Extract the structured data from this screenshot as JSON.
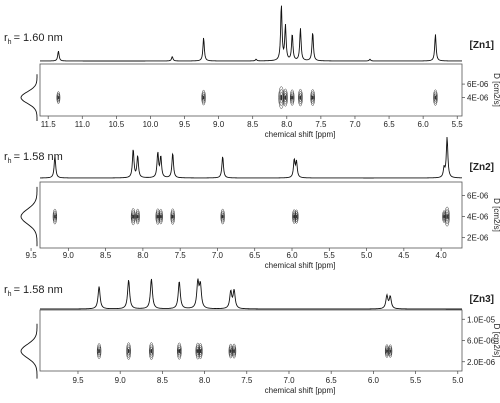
{
  "chart_data": [
    {
      "type": "dosy",
      "compound": "[Zn1]",
      "rh_symbol": "r",
      "rh_sub": "h",
      "rh_value": "= 1.60 nm",
      "xlabel": "chemical shift [ppm]",
      "ylabel": "D [cm2/s]",
      "xlim": [
        11.62,
        5.43
      ],
      "x_ticks": [
        11.5,
        11.0,
        10.5,
        10.0,
        9.5,
        9.0,
        8.5,
        8.0,
        7.5,
        7.0,
        6.5,
        6.0,
        5.5
      ],
      "x_tick_labels": [
        "11.5",
        "11.0",
        "10.5",
        "10.0",
        "9.5",
        "9.0",
        "8.5",
        "8.0",
        "7.5",
        "7.0",
        "6.5",
        "6.0",
        "5.5"
      ],
      "y_ticks": [
        6e-06,
        4e-06
      ],
      "y_tick_labels": [
        "6E-06",
        "4E-06"
      ],
      "ylim": [
        2.6e-06,
        7.2e-06
      ],
      "diffusion_coefficient": 4e-06,
      "peaks": [
        {
          "ppm": 11.35,
          "height": 0.18
        },
        {
          "ppm": 9.68,
          "height": 0.08
        },
        {
          "ppm": 9.22,
          "height": 0.42
        },
        {
          "ppm": 8.45,
          "height": 0.03
        },
        {
          "ppm": 8.08,
          "height": 1.0
        },
        {
          "ppm": 8.02,
          "height": 0.62
        },
        {
          "ppm": 7.92,
          "height": 0.48
        },
        {
          "ppm": 7.8,
          "height": 0.58
        },
        {
          "ppm": 7.62,
          "height": 0.52
        },
        {
          "ppm": 6.78,
          "height": 0.03
        },
        {
          "ppm": 5.82,
          "height": 0.48
        }
      ]
    },
    {
      "type": "dosy",
      "compound": "[Zn2]",
      "rh_symbol": "r",
      "rh_sub": "h",
      "rh_value": "= 1.58 nm",
      "xlabel": "chemical shift [ppm]",
      "ylabel": "D [cm2/s]",
      "xlim": [
        9.38,
        3.72
      ],
      "x_ticks": [
        9.5,
        9.0,
        8.5,
        8.0,
        7.5,
        7.0,
        6.5,
        6.0,
        5.5,
        5.0,
        4.5,
        4.0
      ],
      "x_tick_labels": [
        "9.5",
        "9.0",
        "8.5",
        "8.0",
        "7.5",
        "7.0",
        "6.5",
        "6.0",
        "5.5",
        "5.0",
        "4.5",
        "4.0"
      ],
      "y_ticks": [
        6e-06,
        4e-06,
        2e-06
      ],
      "y_tick_labels": [
        "6E-06",
        "4E-06",
        "2E-06"
      ],
      "ylim": [
        1.4e-06,
        6.8e-06
      ],
      "diffusion_coefficient": 4e-06,
      "peaks": [
        {
          "ppm": 9.18,
          "height": 0.42
        },
        {
          "ppm": 8.13,
          "height": 0.55
        },
        {
          "ppm": 8.07,
          "height": 0.42
        },
        {
          "ppm": 7.8,
          "height": 0.48
        },
        {
          "ppm": 7.76,
          "height": 0.4
        },
        {
          "ppm": 7.6,
          "height": 0.48
        },
        {
          "ppm": 6.93,
          "height": 0.42
        },
        {
          "ppm": 5.97,
          "height": 0.34
        },
        {
          "ppm": 5.94,
          "height": 0.3
        },
        {
          "ppm": 3.96,
          "height": 0.18
        },
        {
          "ppm": 3.92,
          "height": 0.78
        }
      ]
    },
    {
      "type": "dosy",
      "compound": "[Zn3]",
      "rh_symbol": "r",
      "rh_sub": "h",
      "rh_value": "= 1.58 nm",
      "xlabel": "chemical shift [ppm]",
      "ylabel": "D [cm2/s]",
      "xlim": [
        9.95,
        4.95
      ],
      "x_ticks": [
        9.5,
        9.0,
        8.5,
        8.0,
        7.5,
        7.0,
        6.5,
        6.0,
        5.5,
        5.0
      ],
      "x_tick_labels": [
        "9.5",
        "9.0",
        "8.5",
        "8.0",
        "7.5",
        "7.0",
        "6.5",
        "6.0",
        "5.5",
        "5.0"
      ],
      "y_ticks": [
        1e-05,
        6e-06,
        2e-06
      ],
      "y_tick_labels": [
        "1.0E-05",
        "6.0E-06",
        "2.0E-06"
      ],
      "ylim": [
        1.2e-06,
        1.08e-05
      ],
      "diffusion_coefficient": 4e-06,
      "peaks": [
        {
          "ppm": 9.25,
          "height": 0.45
        },
        {
          "ppm": 8.9,
          "height": 0.58
        },
        {
          "ppm": 8.63,
          "height": 0.6
        },
        {
          "ppm": 8.3,
          "height": 0.55
        },
        {
          "ppm": 8.08,
          "height": 0.52
        },
        {
          "ppm": 8.05,
          "height": 0.46
        },
        {
          "ppm": 7.69,
          "height": 0.34
        },
        {
          "ppm": 7.65,
          "height": 0.36
        },
        {
          "ppm": 5.84,
          "height": 0.26
        },
        {
          "ppm": 5.8,
          "height": 0.24
        }
      ]
    }
  ]
}
